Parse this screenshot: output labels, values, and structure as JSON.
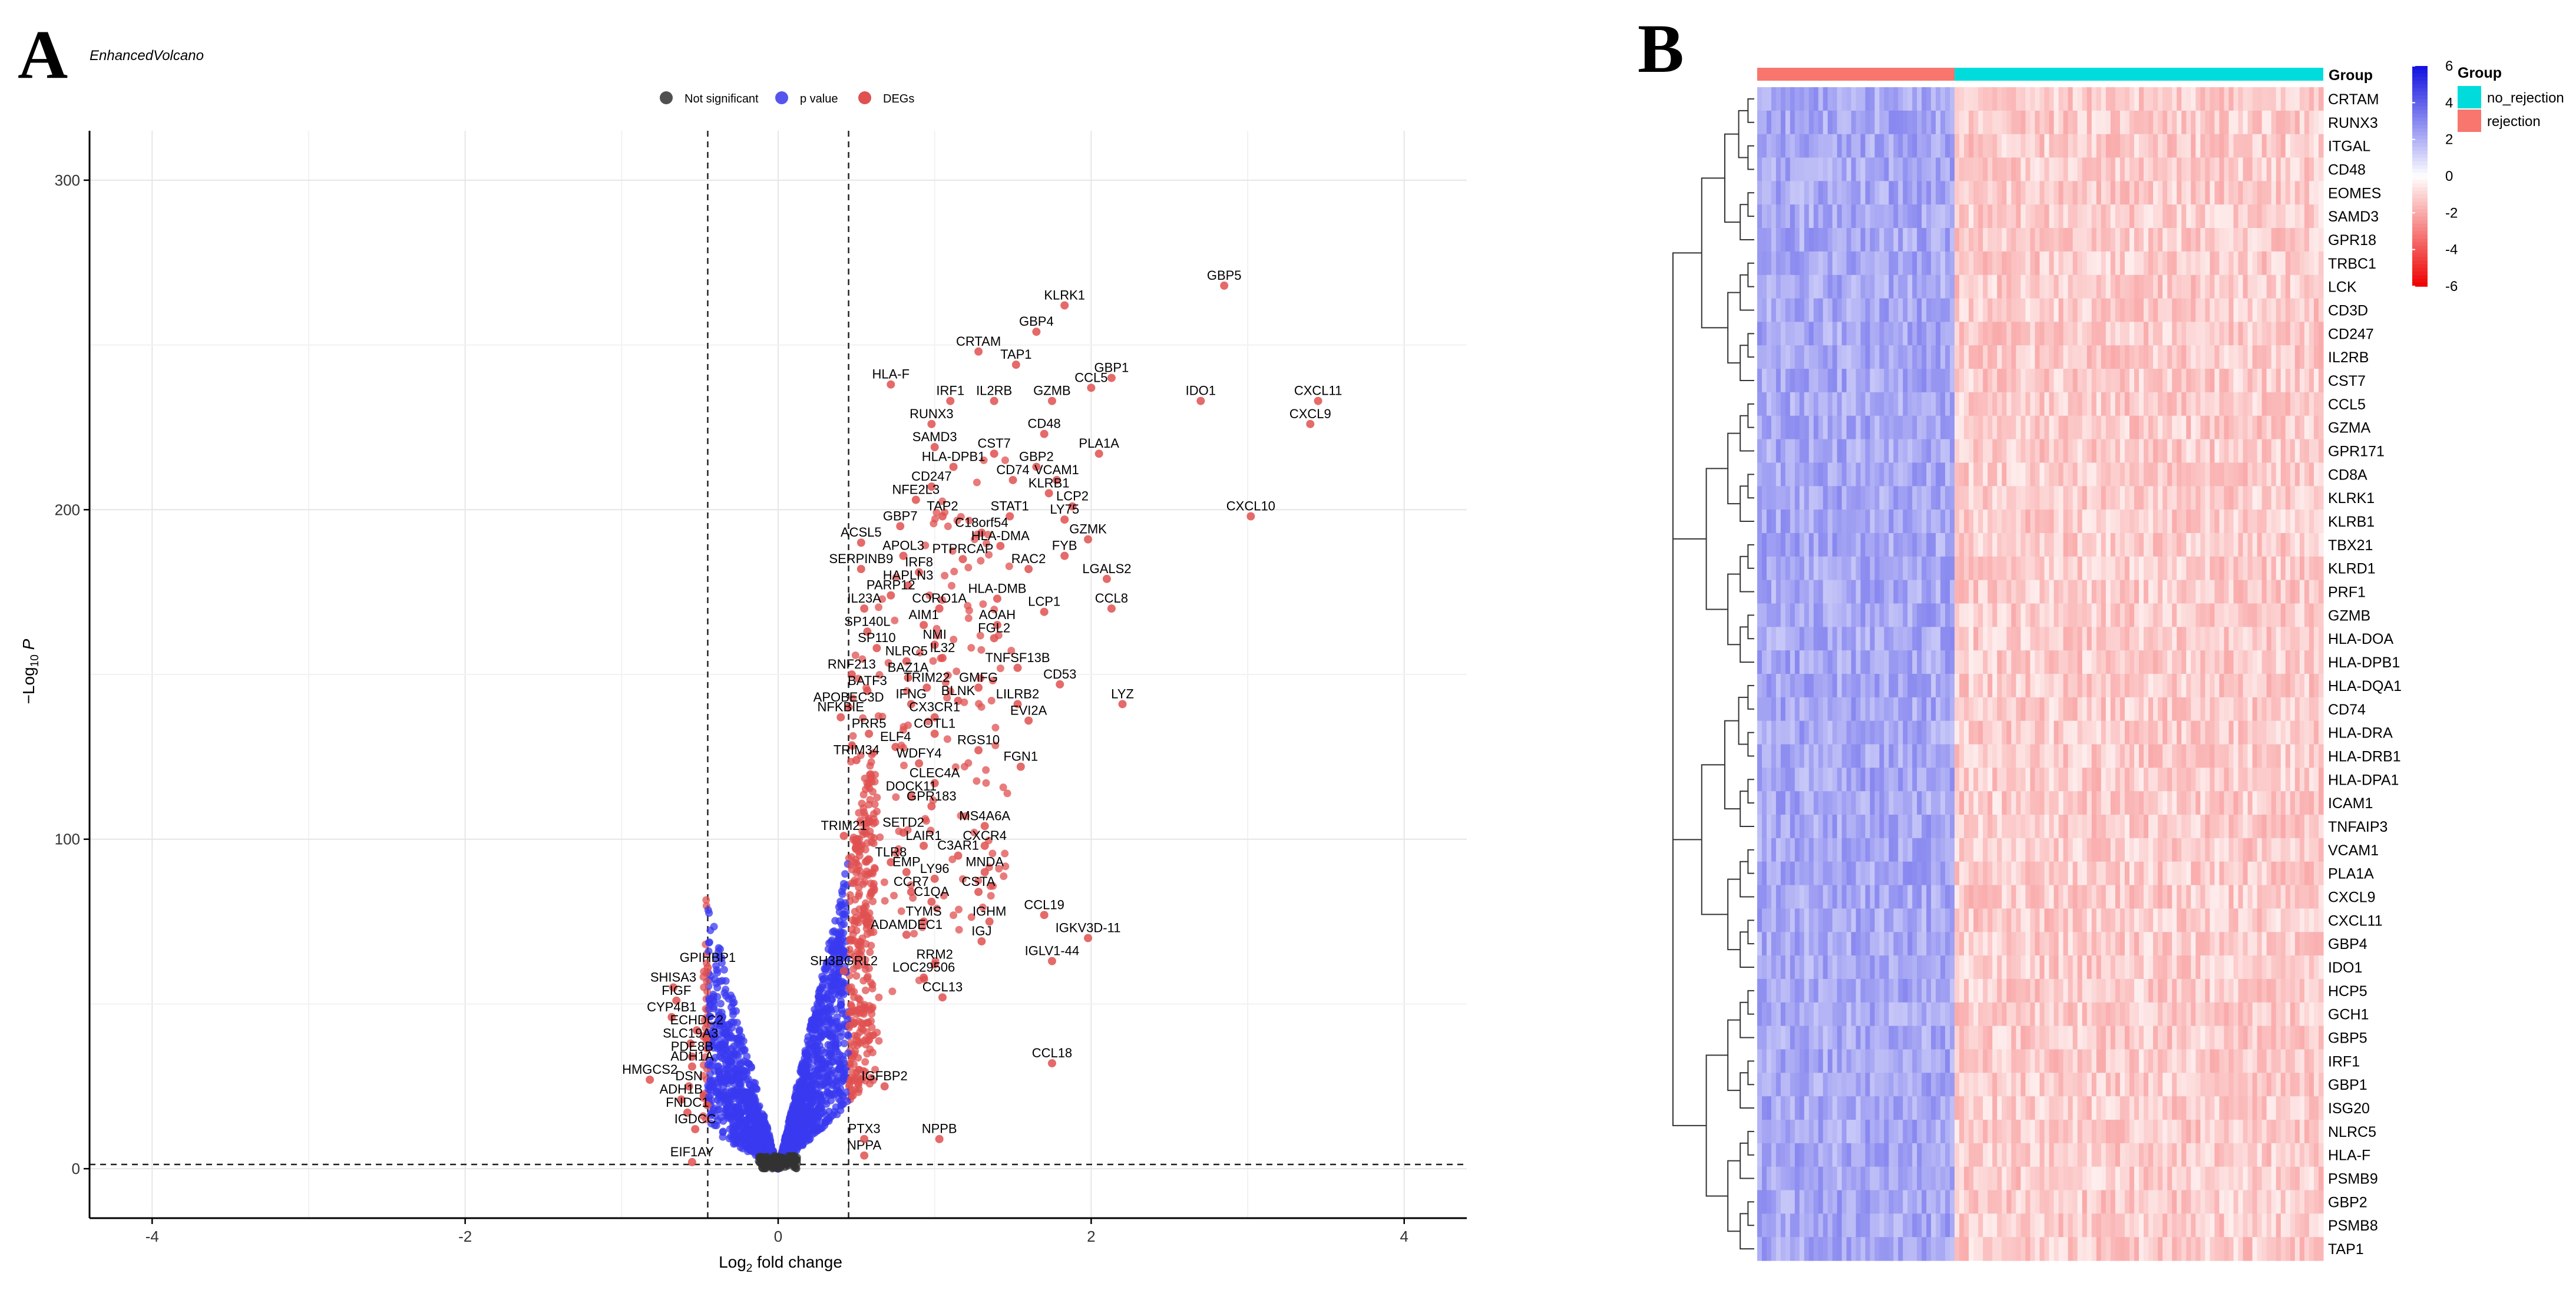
{
  "panels": {
    "a_letter": "A",
    "b_letter": "B"
  },
  "chart_data": [
    {
      "type": "scatter",
      "title": "EnhancedVolcano",
      "xlabel": "Log2 fold change",
      "ylabel": "-Log10 P",
      "xlim": [
        -4.4,
        4.4
      ],
      "ylim": [
        -15,
        315
      ],
      "x_ticks": [
        "-4",
        "-2",
        "0",
        "2",
        "4"
      ],
      "y_ticks": [
        "0",
        "100",
        "200",
        "300"
      ],
      "grid": true,
      "legend_position": "top",
      "legend": [
        {
          "name": "Not significant",
          "color": "#505050"
        },
        {
          "name": "p value",
          "color": "#5555ee"
        },
        {
          "name": "DEGs",
          "color": "#e05050"
        }
      ],
      "thresholds": {
        "log2fc": [
          -0.45,
          0.45
        ],
        "neglog10p": 1.3
      },
      "labeled_points": [
        {
          "label": "GBP5",
          "x": 2.85,
          "y": 268
        },
        {
          "label": "KLRK1",
          "x": 1.83,
          "y": 262
        },
        {
          "label": "GBP4",
          "x": 1.65,
          "y": 254
        },
        {
          "label": "CRTAM",
          "x": 1.28,
          "y": 248
        },
        {
          "label": "TAP1",
          "x": 1.52,
          "y": 244
        },
        {
          "label": "GBP1",
          "x": 2.13,
          "y": 240
        },
        {
          "label": "HLA-F",
          "x": 0.72,
          "y": 238
        },
        {
          "label": "CCL5",
          "x": 2.0,
          "y": 237
        },
        {
          "label": "IRF1",
          "x": 1.1,
          "y": 233
        },
        {
          "label": "IL2RB",
          "x": 1.38,
          "y": 233
        },
        {
          "label": "GZMB",
          "x": 1.75,
          "y": 233
        },
        {
          "label": "IDO1",
          "x": 2.7,
          "y": 233
        },
        {
          "label": "CXCL11",
          "x": 3.45,
          "y": 233
        },
        {
          "label": "RUNX3",
          "x": 0.98,
          "y": 226
        },
        {
          "label": "CXCL9",
          "x": 3.4,
          "y": 226
        },
        {
          "label": "CD48",
          "x": 1.7,
          "y": 223
        },
        {
          "label": "SAMD3",
          "x": 1.0,
          "y": 219
        },
        {
          "label": "CST7",
          "x": 1.38,
          "y": 217
        },
        {
          "label": "PLA1A",
          "x": 2.05,
          "y": 217
        },
        {
          "label": "HLA-DPB1",
          "x": 1.12,
          "y": 213
        },
        {
          "label": "GBP2",
          "x": 1.65,
          "y": 213
        },
        {
          "label": "CD74",
          "x": 1.5,
          "y": 209
        },
        {
          "label": "VCAM1",
          "x": 1.78,
          "y": 209
        },
        {
          "label": "CD247",
          "x": 0.98,
          "y": 207
        },
        {
          "label": "KLRB1",
          "x": 1.73,
          "y": 205
        },
        {
          "label": "NFE2L3",
          "x": 0.88,
          "y": 203
        },
        {
          "label": "LCP2",
          "x": 1.88,
          "y": 201
        },
        {
          "label": "TAP2",
          "x": 1.05,
          "y": 198
        },
        {
          "label": "STAT1",
          "x": 1.48,
          "y": 198
        },
        {
          "label": "LY75",
          "x": 1.83,
          "y": 197
        },
        {
          "label": "CXCL10",
          "x": 3.02,
          "y": 198
        },
        {
          "label": "GBP7",
          "x": 0.78,
          "y": 195
        },
        {
          "label": "C18orf54",
          "x": 1.3,
          "y": 193
        },
        {
          "label": "GZMK",
          "x": 1.98,
          "y": 191
        },
        {
          "label": "ACSL5",
          "x": 0.53,
          "y": 190
        },
        {
          "label": "HLA-DMA",
          "x": 1.42,
          "y": 189
        },
        {
          "label": "FYB",
          "x": 1.83,
          "y": 186
        },
        {
          "label": "APOL3",
          "x": 0.8,
          "y": 186
        },
        {
          "label": "PTPRCAP",
          "x": 1.18,
          "y": 185
        },
        {
          "label": "SERPINB9",
          "x": 0.53,
          "y": 182
        },
        {
          "label": "IRF8",
          "x": 0.9,
          "y": 181
        },
        {
          "label": "RAC2",
          "x": 1.6,
          "y": 182
        },
        {
          "label": "LGALS2",
          "x": 2.1,
          "y": 179
        },
        {
          "label": "HAPLN3",
          "x": 0.83,
          "y": 177
        },
        {
          "label": "HLA-DMB",
          "x": 1.4,
          "y": 173
        },
        {
          "label": "PARP12",
          "x": 0.72,
          "y": 174
        },
        {
          "label": "IL23A",
          "x": 0.55,
          "y": 170
        },
        {
          "label": "CORO1A",
          "x": 1.03,
          "y": 170
        },
        {
          "label": "LCP1",
          "x": 1.7,
          "y": 169
        },
        {
          "label": "CCL8",
          "x": 2.13,
          "y": 170
        },
        {
          "label": "AIM1",
          "x": 0.93,
          "y": 165
        },
        {
          "label": "AOAH",
          "x": 1.4,
          "y": 165
        },
        {
          "label": "SP140L",
          "x": 0.57,
          "y": 163
        },
        {
          "label": "FGL2",
          "x": 1.38,
          "y": 161
        },
        {
          "label": "NMI",
          "x": 1.0,
          "y": 159
        },
        {
          "label": "SP110",
          "x": 0.63,
          "y": 158
        },
        {
          "label": "IL32",
          "x": 1.05,
          "y": 155
        },
        {
          "label": "NLRC5",
          "x": 0.82,
          "y": 154
        },
        {
          "label": "TNFSF13B",
          "x": 1.53,
          "y": 152
        },
        {
          "label": "RNF213",
          "x": 0.47,
          "y": 150
        },
        {
          "label": "BAZ1A",
          "x": 0.83,
          "y": 149
        },
        {
          "label": "CD53",
          "x": 1.8,
          "y": 147
        },
        {
          "label": "TRIM22",
          "x": 0.95,
          "y": 146
        },
        {
          "label": "GMFG",
          "x": 1.28,
          "y": 146
        },
        {
          "label": "BATF3",
          "x": 0.57,
          "y": 145
        },
        {
          "label": "BLNK",
          "x": 1.15,
          "y": 142
        },
        {
          "label": "LILRB2",
          "x": 1.53,
          "y": 141
        },
        {
          "label": "LYZ",
          "x": 2.2,
          "y": 141
        },
        {
          "label": "APOBEC3D",
          "x": 0.45,
          "y": 140
        },
        {
          "label": "IFNG",
          "x": 0.85,
          "y": 141
        },
        {
          "label": "NFKBIE",
          "x": 0.4,
          "y": 137
        },
        {
          "label": "CX3CR1",
          "x": 1.0,
          "y": 137
        },
        {
          "label": "EVI2A",
          "x": 1.6,
          "y": 136
        },
        {
          "label": "PRR5",
          "x": 0.58,
          "y": 132
        },
        {
          "label": "COTL1",
          "x": 1.0,
          "y": 132
        },
        {
          "label": "ELF4",
          "x": 0.75,
          "y": 128
        },
        {
          "label": "RGS10",
          "x": 1.28,
          "y": 127
        },
        {
          "label": "TRIM34",
          "x": 0.5,
          "y": 124
        },
        {
          "label": "WDFY4",
          "x": 0.9,
          "y": 123
        },
        {
          "label": "FGN1",
          "x": 1.55,
          "y": 122
        },
        {
          "label": "CLEC4A",
          "x": 1.0,
          "y": 117
        },
        {
          "label": "DOCK11",
          "x": 0.85,
          "y": 113
        },
        {
          "label": "GPR183",
          "x": 0.98,
          "y": 110
        },
        {
          "label": "MS4A6A",
          "x": 1.32,
          "y": 104
        },
        {
          "label": "SETD2",
          "x": 0.8,
          "y": 102
        },
        {
          "label": "CXCR4",
          "x": 1.32,
          "y": 98
        },
        {
          "label": "LAIR1",
          "x": 0.93,
          "y": 98
        },
        {
          "label": "TRIM21",
          "x": 0.42,
          "y": 101
        },
        {
          "label": "C3AR1",
          "x": 1.15,
          "y": 95
        },
        {
          "label": "TLR8",
          "x": 0.72,
          "y": 93
        },
        {
          "label": "MNDA",
          "x": 1.32,
          "y": 90
        },
        {
          "label": "EMP",
          "x": 0.82,
          "y": 90
        },
        {
          "label": "LY96",
          "x": 1.0,
          "y": 88
        },
        {
          "label": "CCR7",
          "x": 0.85,
          "y": 84
        },
        {
          "label": "CSTA",
          "x": 1.28,
          "y": 84
        },
        {
          "label": "C1QA",
          "x": 0.98,
          "y": 81
        },
        {
          "label": "CCL19",
          "x": 1.7,
          "y": 77
        },
        {
          "label": "TYMS",
          "x": 0.93,
          "y": 75
        },
        {
          "label": "IGHM",
          "x": 1.35,
          "y": 75
        },
        {
          "label": "ADAMDEC1",
          "x": 0.82,
          "y": 71
        },
        {
          "label": "IGKV3D-11",
          "x": 1.98,
          "y": 70
        },
        {
          "label": "IGJ",
          "x": 1.3,
          "y": 69
        },
        {
          "label": "IGLV1-44",
          "x": 1.75,
          "y": 63
        },
        {
          "label": "RRM2",
          "x": 1.0,
          "y": 62
        },
        {
          "label": "LOC29506",
          "x": 0.93,
          "y": 58
        },
        {
          "label": "CCL13",
          "x": 1.05,
          "y": 52
        },
        {
          "label": "IGFBP2",
          "x": 0.68,
          "y": 25
        },
        {
          "label": "CCL18",
          "x": 1.75,
          "y": 32
        },
        {
          "label": "NPPB",
          "x": 1.03,
          "y": 9
        },
        {
          "label": "NPPA",
          "x": 0.55,
          "y": 4
        },
        {
          "label": "PTX3",
          "x": 0.55,
          "y": 9
        },
        {
          "label": "GPIHBP1",
          "x": -0.45,
          "y": 61
        },
        {
          "label": "SH3BGRL2",
          "x": 0.42,
          "y": 60
        },
        {
          "label": "SHISA3",
          "x": -0.67,
          "y": 55
        },
        {
          "label": "FIGF",
          "x": -0.65,
          "y": 51
        },
        {
          "label": "CYP4B1",
          "x": -0.68,
          "y": 46
        },
        {
          "label": "ECHDC2",
          "x": -0.52,
          "y": 42
        },
        {
          "label": "SLC19A3",
          "x": -0.56,
          "y": 38
        },
        {
          "label": "PDE8B",
          "x": -0.55,
          "y": 34
        },
        {
          "label": "ADH1A",
          "x": -0.55,
          "y": 31
        },
        {
          "label": "HMGCS2",
          "x": -0.82,
          "y": 27
        },
        {
          "label": "DSN",
          "x": -0.57,
          "y": 25
        },
        {
          "label": "ADH1B",
          "x": -0.62,
          "y": 21
        },
        {
          "label": "FNDC1",
          "x": -0.58,
          "y": 17
        },
        {
          "label": "IGDCC",
          "x": -0.53,
          "y": 12
        },
        {
          "label": "EIF1AY",
          "x": -0.55,
          "y": 2
        }
      ]
    },
    {
      "type": "heatmap",
      "legend_title": "Group",
      "groups": [
        {
          "name": "rejection",
          "color": "#f8766d",
          "n_samples": 42
        },
        {
          "name": "no_rejection",
          "color": "#00dcdc",
          "n_samples": 78
        }
      ],
      "group_legend_order": [
        "no_rejection",
        "rejection"
      ],
      "annotation_label": "Group",
      "colorbar_title": "",
      "colorbar_ticks": [
        "6",
        "4",
        "2",
        "0",
        "-2",
        "-4",
        "-6"
      ],
      "colorbar_range": [
        -6,
        6
      ],
      "colorbar_colors": {
        "high": "#1010e0",
        "mid": "#ffffff",
        "low": "#ee0000"
      },
      "rows": [
        "CRTAM",
        "RUNX3",
        "ITGAL",
        "CD48",
        "EOMES",
        "SAMD3",
        "GPR18",
        "TRBC1",
        "LCK",
        "CD3D",
        "CD247",
        "IL2RB",
        "CST7",
        "CCL5",
        "GZMA",
        "GPR171",
        "CD8A",
        "KLRK1",
        "KLRB1",
        "TBX21",
        "KLRD1",
        "PRF1",
        "GZMB",
        "HLA-DOA",
        "HLA-DPB1",
        "HLA-DQA1",
        "CD74",
        "HLA-DRA",
        "HLA-DRB1",
        "HLA-DPA1",
        "ICAM1",
        "TNFAIP3",
        "VCAM1",
        "PLA1A",
        "CXCL9",
        "CXCL11",
        "GBP4",
        "IDO1",
        "HCP5",
        "GCH1",
        "GBP5",
        "IRF1",
        "GBP1",
        "ISG20",
        "NLRC5",
        "HLA-F",
        "PSMB9",
        "GBP2",
        "PSMB8",
        "TAP1"
      ],
      "group_means": {
        "rejection": 2.2,
        "no_rejection": -1.2
      }
    }
  ]
}
